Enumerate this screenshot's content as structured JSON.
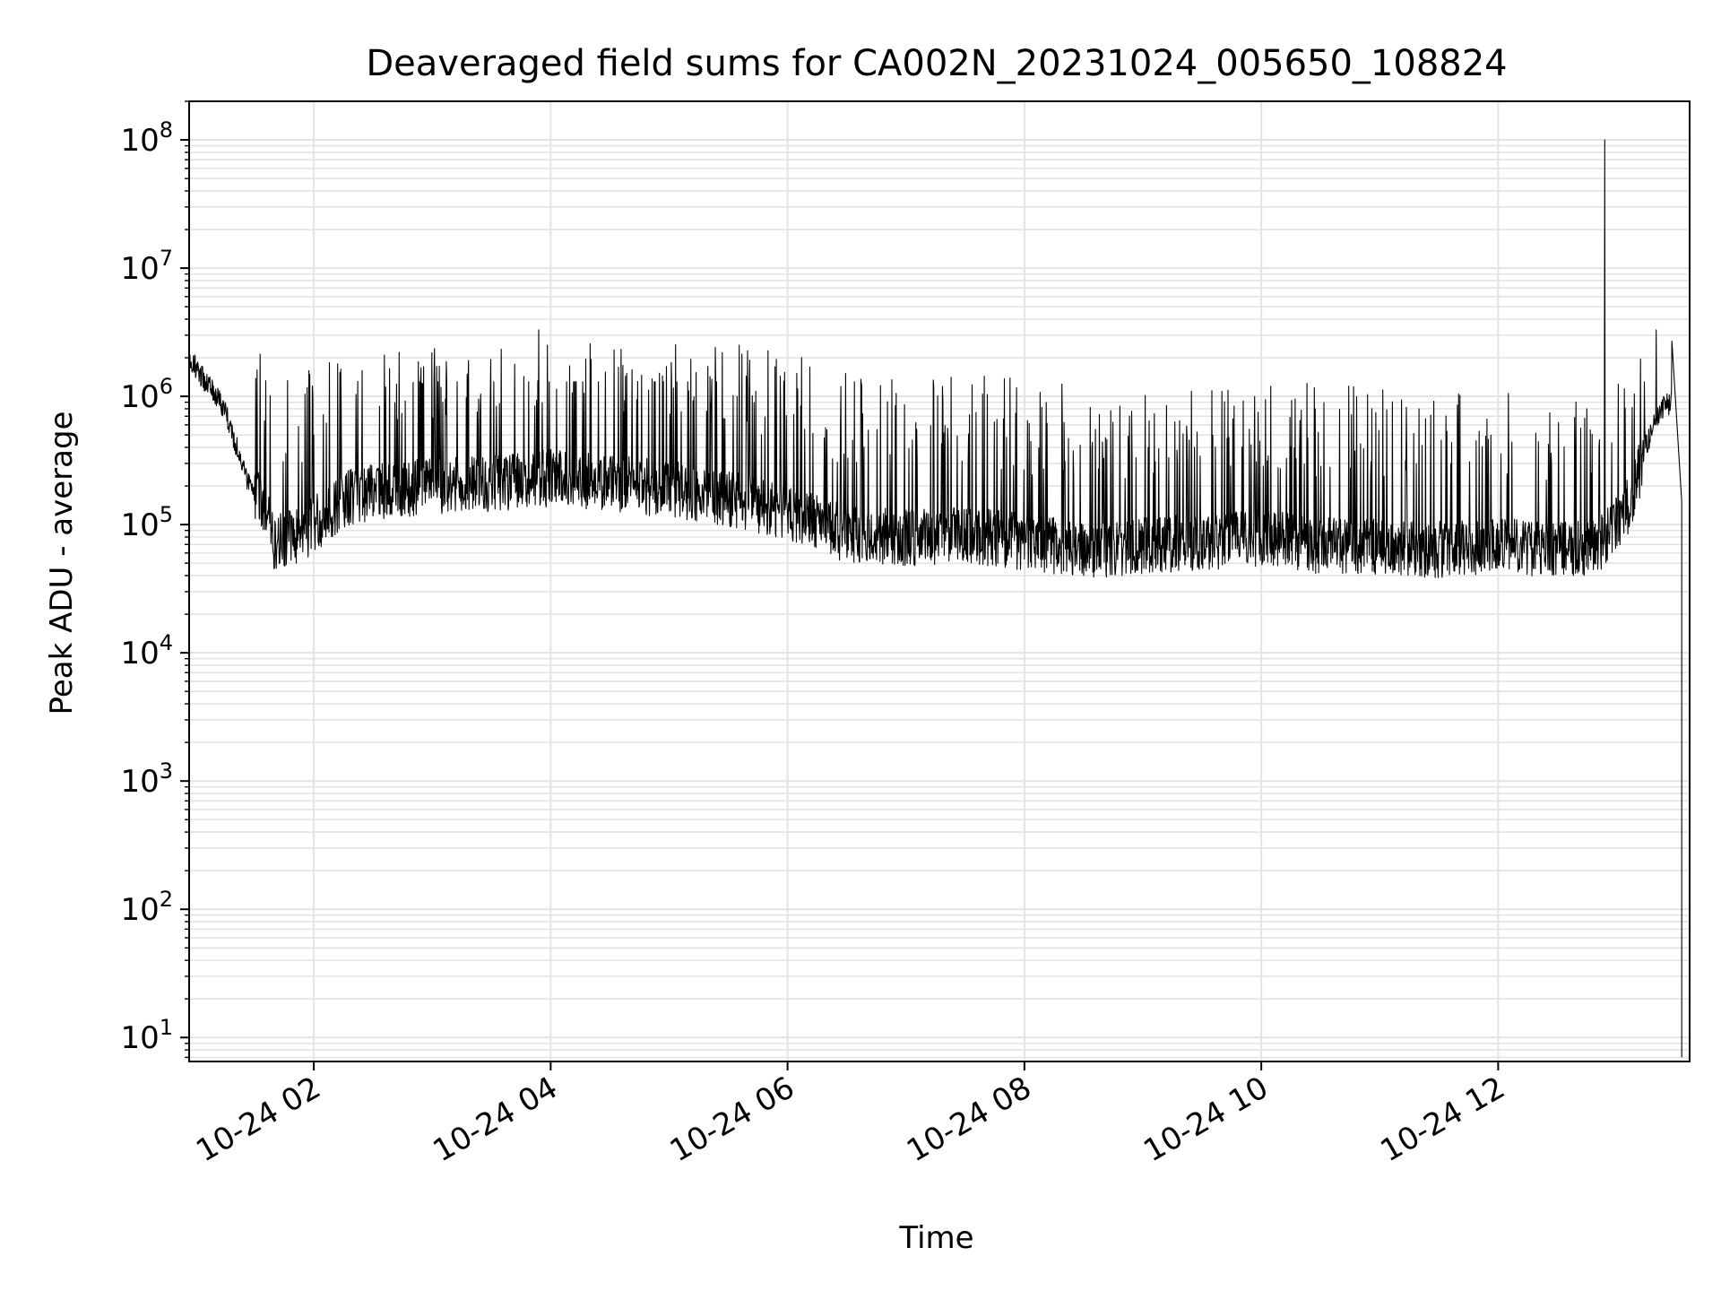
{
  "chart_data": {
    "type": "line",
    "title": "Deaveraged field sums for CA002N_20231024_005650_108824",
    "xlabel": "Time",
    "ylabel": "Peak ADU - average",
    "yscale": "log",
    "ylim": [
      6.5,
      200000000
    ],
    "xlim": [
      "2023-10-24 00:56:50",
      "2023-10-24 13:37:00"
    ],
    "xticks": [
      {
        "t": "2023-10-24 02:00",
        "label": "10-24 02"
      },
      {
        "t": "2023-10-24 04:00",
        "label": "10-24 04"
      },
      {
        "t": "2023-10-24 06:00",
        "label": "10-24 06"
      },
      {
        "t": "2023-10-24 08:00",
        "label": "10-24 08"
      },
      {
        "t": "2023-10-24 10:00",
        "label": "10-24 10"
      },
      {
        "t": "2023-10-24 12:00",
        "label": "10-24 12"
      }
    ],
    "yticks": [
      {
        "v": 10,
        "base": "10",
        "exp": "1"
      },
      {
        "v": 100,
        "base": "10",
        "exp": "2"
      },
      {
        "v": 1000,
        "base": "10",
        "exp": "3"
      },
      {
        "v": 10000,
        "base": "10",
        "exp": "4"
      },
      {
        "v": 100000,
        "base": "10",
        "exp": "5"
      },
      {
        "v": 1000000,
        "base": "10",
        "exp": "6"
      },
      {
        "v": 10000000,
        "base": "10",
        "exp": "7"
      },
      {
        "v": 100000000,
        "base": "10",
        "exp": "8"
      }
    ],
    "grid": true,
    "line_color": "#000000",
    "grid_color": "#e3e3e3",
    "series": [
      {
        "baseline_x": [
          "2023-10-24 00:57",
          "2023-10-24 01:05",
          "2023-10-24 01:15",
          "2023-10-24 01:25",
          "2023-10-24 01:35",
          "2023-10-24 01:40",
          "2023-10-24 01:50",
          "2023-10-24 02:00",
          "2023-10-24 02:20",
          "2023-10-24 02:40",
          "2023-10-24 03:00",
          "2023-10-24 03:30",
          "2023-10-24 04:00",
          "2023-10-24 04:30",
          "2023-10-24 05:00",
          "2023-10-24 05:30",
          "2023-10-24 06:00",
          "2023-10-24 06:30",
          "2023-10-24 07:00",
          "2023-10-24 07:30",
          "2023-10-24 08:00",
          "2023-10-24 08:30",
          "2023-10-24 09:00",
          "2023-10-24 09:30",
          "2023-10-24 10:00",
          "2023-10-24 10:30",
          "2023-10-24 11:00",
          "2023-10-24 11:30",
          "2023-10-24 12:00",
          "2023-10-24 12:30",
          "2023-10-24 12:50",
          "2023-10-24 13:00",
          "2023-10-24 13:08",
          "2023-10-24 13:15",
          "2023-10-24 13:22",
          "2023-10-24 13:28"
        ],
        "baseline_y": [
          2000000,
          1300000,
          800000,
          250000,
          120000,
          70000,
          75000,
          95000,
          160000,
          180000,
          190000,
          200000,
          220000,
          200000,
          180000,
          150000,
          120000,
          80000,
          75000,
          80000,
          70000,
          60000,
          65000,
          70000,
          75000,
          65000,
          65000,
          60000,
          65000,
          60000,
          65000,
          100000,
          150000,
          400000,
          800000,
          900000
        ],
        "spikes": [
          {
            "x": "2023-10-24 03:54",
            "y": 3300000
          },
          {
            "x": "2023-10-24 12:54",
            "y": 100000000
          },
          {
            "x": "2023-10-24 13:20",
            "y": 3300000
          },
          {
            "x": "2023-10-24 13:28",
            "y": 2700000
          }
        ],
        "drop": {
          "x": "2023-10-24 13:33",
          "y": 7
        }
      }
    ]
  }
}
